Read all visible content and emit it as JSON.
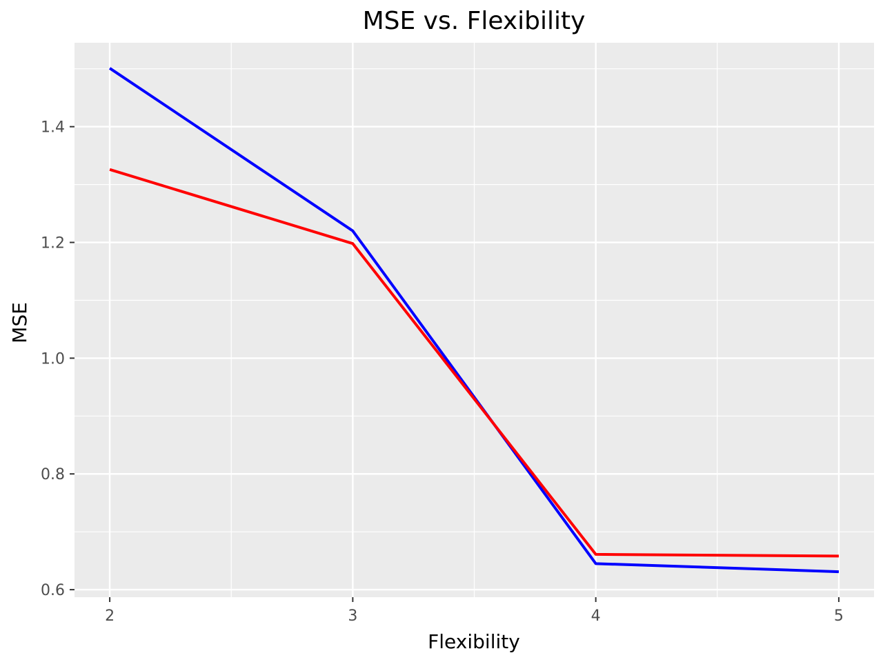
{
  "chart_data": {
    "type": "line",
    "title": "MSE vs. Flexibility",
    "xlabel": "Flexibility",
    "ylabel": "MSE",
    "xlim": [
      1.855,
      5.145
    ],
    "ylim": [
      0.587,
      1.545
    ],
    "x_ticks": [
      2,
      3,
      4,
      5
    ],
    "x_tick_labels": [
      "2",
      "3",
      "4",
      "5"
    ],
    "x_minor_ticks": [
      2.5,
      3.5,
      4.5
    ],
    "y_ticks": [
      0.6,
      0.8,
      1.0,
      1.2,
      1.4
    ],
    "y_tick_labels": [
      "0.6",
      "0.8",
      "1.0",
      "1.2",
      "1.4"
    ],
    "y_minor_ticks": [
      0.7,
      0.9,
      1.1,
      1.3,
      1.5
    ],
    "grid": true,
    "legend": "none",
    "background_color": "#ebebeb",
    "grid_color": "#ffffff",
    "series": [
      {
        "color": "#0000ff",
        "x": [
          2,
          3,
          4,
          5
        ],
        "values": [
          1.501,
          1.22,
          0.645,
          0.631
        ]
      },
      {
        "color": "#ff0000",
        "x": [
          2,
          3,
          4,
          5
        ],
        "values": [
          1.326,
          1.198,
          0.661,
          0.658
        ]
      }
    ]
  }
}
